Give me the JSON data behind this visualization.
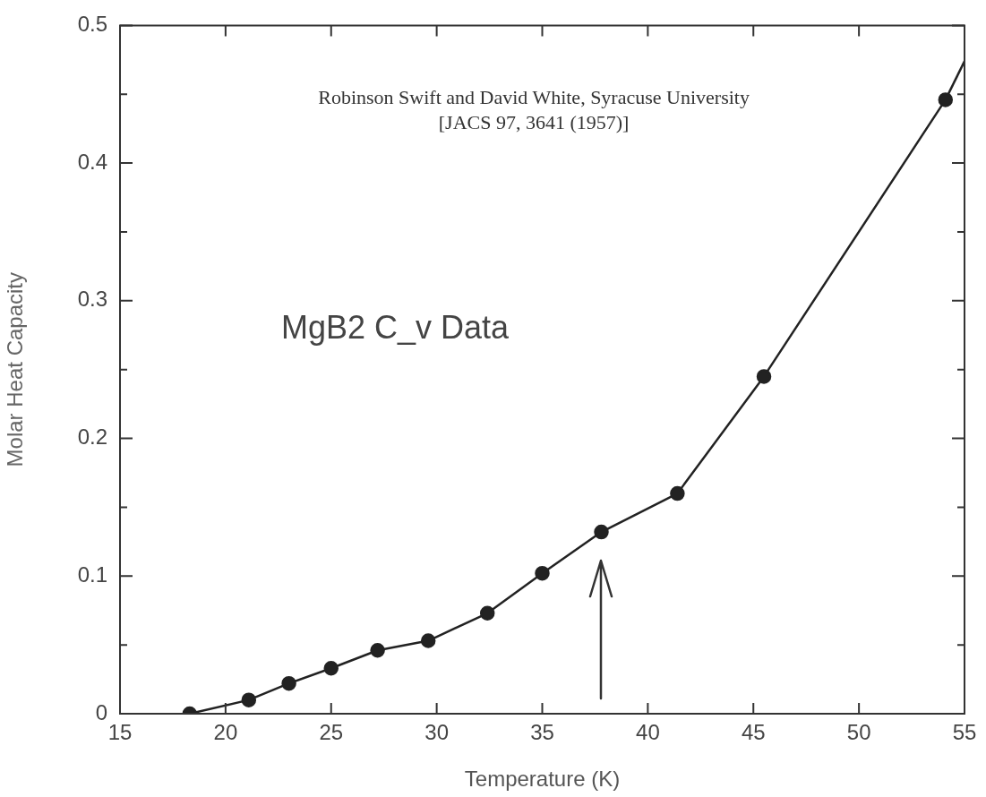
{
  "chart_data": {
    "type": "line",
    "xlabel": "Temperature (K)",
    "ylabel": "Molar Heat Capacity",
    "annotations": [
      "Robinson Swift and David White, Syracuse University\n[JACS 97, 3641 (1957)]",
      "MgB2 C_v Data"
    ],
    "xlim": [
      15,
      55
    ],
    "xticks": [
      15,
      20,
      25,
      30,
      35,
      40,
      45,
      50,
      55
    ],
    "ylim": [
      0,
      0.5
    ],
    "yticks": [
      0,
      {
        "value": 0.05,
        "label": null
      },
      0.1,
      {
        "value": 0.15,
        "label": null
      },
      0.2,
      {
        "value": 0.25,
        "label": null
      },
      0.3,
      {
        "value": 0.35,
        "label": null
      },
      0.4,
      {
        "value": 0.45,
        "label": null
      },
      0.5
    ],
    "grid": false,
    "legend": false,
    "marker": "circle",
    "line_style": "solid",
    "series": [
      {
        "color": "#222222",
        "x": [
          18.3,
          21.1,
          23.0,
          25.0,
          27.2,
          29.6,
          32.4,
          35.0,
          37.8,
          41.4,
          45.5,
          54.1
        ],
        "values": [
          0,
          0.01,
          0.022,
          0.033,
          0.046,
          0.053,
          0.073,
          0.102,
          0.132,
          0.16,
          0.245,
          0.446
        ]
      },
      {
        "color": "#222222",
        "marker": "none",
        "x": [
          54.1,
          55
        ],
        "values": [
          0.446,
          0.474
        ]
      }
    ]
  }
}
